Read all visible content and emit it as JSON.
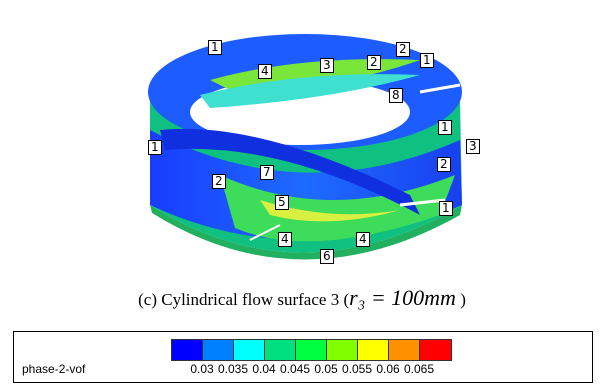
{
  "caption": {
    "prefix": "(c) Cylindrical flow surface 3 (",
    "math": "r₃ = 100mm",
    "suffix": " )"
  },
  "labels": [
    "1",
    "4",
    "3",
    "2",
    "2",
    "1",
    "8",
    "1",
    "1",
    "2",
    "3",
    "2",
    "7",
    "5",
    "1",
    "4",
    "4",
    "6"
  ],
  "legend": {
    "title": "phase-2-vof",
    "ticks": [
      "0.03",
      "0.035",
      "0.04",
      "0.045",
      "0.05",
      "0.055",
      "0.06",
      "0.065"
    ],
    "colors": [
      "#0000ff",
      "#0080ff",
      "#00ffff",
      "#00e080",
      "#00ff40",
      "#80ff00",
      "#ffff00",
      "#ff9000",
      "#ff0000"
    ]
  }
}
